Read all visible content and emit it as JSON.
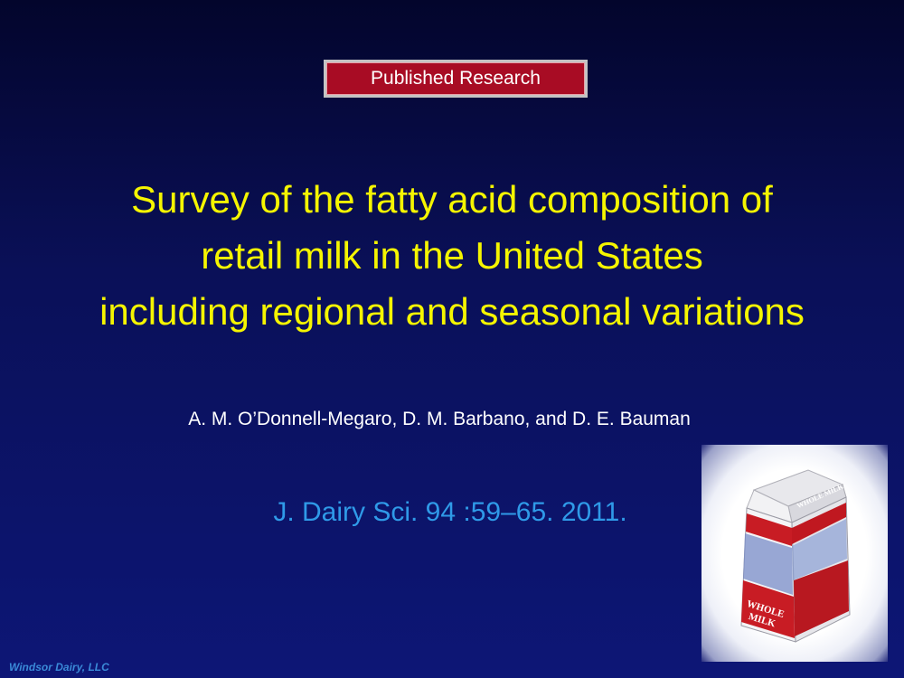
{
  "badge": {
    "label": "Published Research"
  },
  "title": {
    "lines": [
      "Survey of the fatty acid composition of",
      "retail milk in the United States",
      "including regional and seasonal variations"
    ]
  },
  "authors": "A. M. O’Donnell-Megaro, D. M. Barbano, and D. E. Bauman",
  "citation": "J. Dairy Sci. 94 :59–65. 2011.",
  "footer": "Windsor Dairy, LLC",
  "carton": {
    "top_label": "WHOLE MILK",
    "side_label_1": "WHOLE",
    "side_label_2": "MILK"
  },
  "colors": {
    "background": "#0a1058",
    "title": "#f5f500",
    "citation": "#2f9ae8",
    "badge": "#a80c24"
  }
}
